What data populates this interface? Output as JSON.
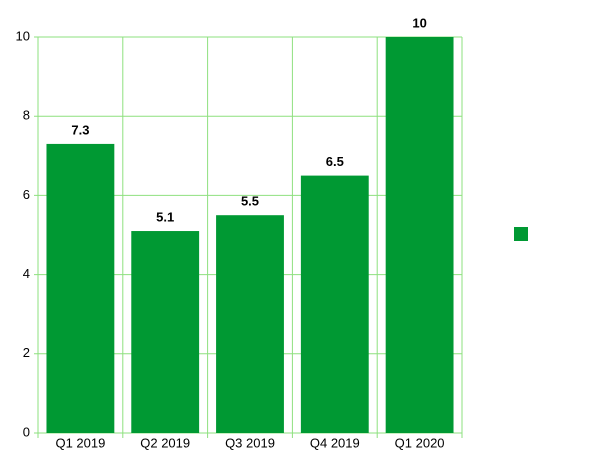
{
  "chart_data": {
    "type": "bar",
    "categories": [
      "Q1 2019",
      "Q2 2019",
      "Q3 2019",
      "Q4 2019",
      "Q1 2020"
    ],
    "series": [
      {
        "color": "#009933",
        "values": [
          7.3,
          5.1,
          5.5,
          6.5,
          10
        ]
      }
    ],
    "ylim": [
      0,
      10
    ],
    "yticks": [
      0,
      2,
      4,
      6,
      8,
      10
    ],
    "grid": true,
    "legend": "right"
  }
}
